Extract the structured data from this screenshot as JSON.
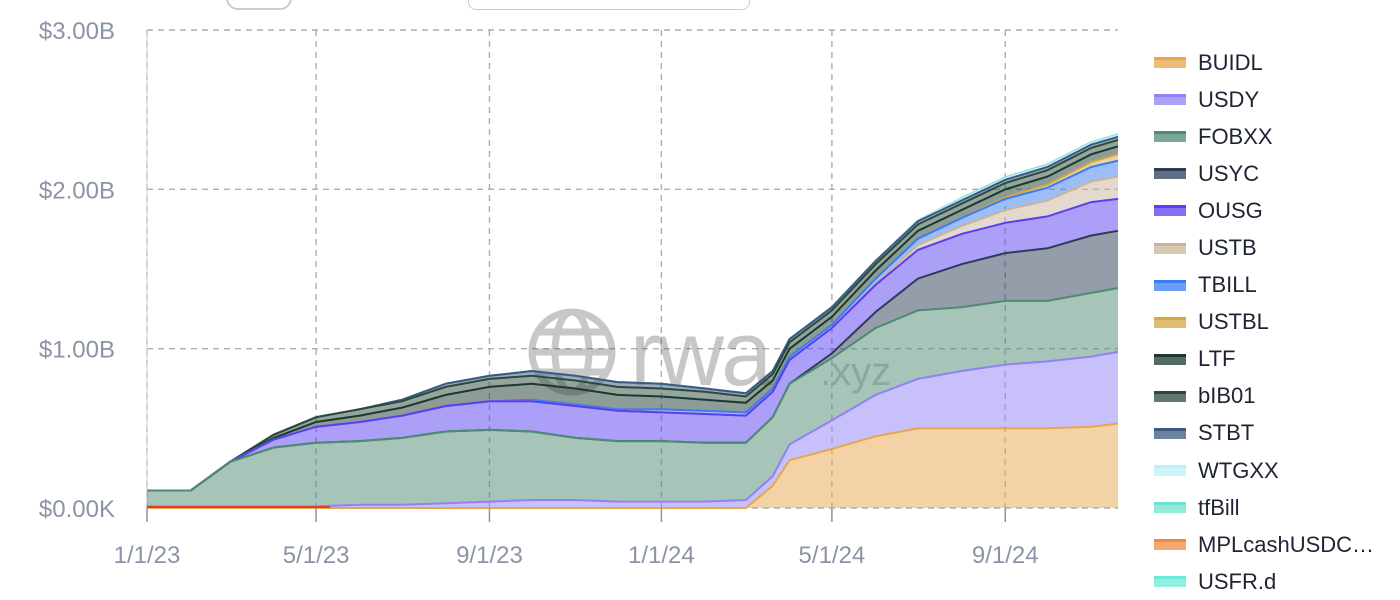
{
  "chart_data": {
    "type": "area",
    "stacked": true,
    "x_axis": {
      "ticks": [
        "1/1/23",
        "5/1/23",
        "9/1/23",
        "1/1/24",
        "5/1/24",
        "9/1/24"
      ],
      "range": [
        "2023-01-01",
        "2024-11-20"
      ]
    },
    "y_axis": {
      "ticks": [
        "$0.00K",
        "$1.00B",
        "$2.00B",
        "$3.00B"
      ],
      "range": [
        0,
        3.0
      ],
      "unit": "billions USD"
    },
    "grid": true,
    "legend_position": "right",
    "watermark": "rwa.xyz",
    "x": [
      "2023-01-01",
      "2023-02-01",
      "2023-03-01",
      "2023-04-01",
      "2023-05-01",
      "2023-06-01",
      "2023-07-01",
      "2023-08-01",
      "2023-09-01",
      "2023-10-01",
      "2023-11-01",
      "2023-12-01",
      "2024-01-01",
      "2024-02-01",
      "2024-03-01",
      "2024-03-20",
      "2024-04-01",
      "2024-05-01",
      "2024-06-01",
      "2024-07-01",
      "2024-08-01",
      "2024-09-01",
      "2024-10-01",
      "2024-11-01",
      "2024-11-20"
    ],
    "series": [
      {
        "name": "BUIDL",
        "color": "#e8a64c",
        "values": [
          0,
          0,
          0,
          0,
          0,
          0,
          0,
          0,
          0,
          0,
          0,
          0,
          0,
          0,
          0,
          0.14,
          0.3,
          0.37,
          0.45,
          0.5,
          0.5,
          0.5,
          0.5,
          0.51,
          0.53
        ]
      },
      {
        "name": "USDY",
        "color": "#8f82f5",
        "values": [
          0.01,
          0.01,
          0.01,
          0.01,
          0.01,
          0.02,
          0.02,
          0.03,
          0.04,
          0.05,
          0.05,
          0.04,
          0.04,
          0.04,
          0.05,
          0.06,
          0.1,
          0.18,
          0.26,
          0.31,
          0.36,
          0.4,
          0.42,
          0.44,
          0.45
        ]
      },
      {
        "name": "FOBXX",
        "color": "#4f8a73",
        "values": [
          0.1,
          0.1,
          0.28,
          0.37,
          0.4,
          0.4,
          0.42,
          0.45,
          0.45,
          0.43,
          0.39,
          0.38,
          0.38,
          0.37,
          0.36,
          0.37,
          0.38,
          0.39,
          0.42,
          0.43,
          0.4,
          0.4,
          0.38,
          0.4,
          0.4
        ]
      },
      {
        "name": "USYC",
        "color": "#2b3c58",
        "values": [
          0,
          0,
          0,
          0,
          0,
          0,
          0,
          0,
          0,
          0,
          0,
          0,
          0,
          0,
          0,
          0,
          0,
          0.03,
          0.1,
          0.2,
          0.27,
          0.3,
          0.33,
          0.36,
          0.36
        ]
      },
      {
        "name": "OUSG",
        "color": "#5a3ff0",
        "values": [
          0,
          0,
          0,
          0.05,
          0.1,
          0.12,
          0.14,
          0.16,
          0.18,
          0.19,
          0.2,
          0.19,
          0.18,
          0.18,
          0.17,
          0.16,
          0.15,
          0.16,
          0.17,
          0.18,
          0.19,
          0.19,
          0.2,
          0.21,
          0.2
        ]
      },
      {
        "name": "USTB",
        "color": "#c9b499",
        "values": [
          0,
          0,
          0,
          0,
          0,
          0,
          0,
          0,
          0,
          0,
          0,
          0,
          0,
          0,
          0,
          0,
          0,
          0,
          0.01,
          0.03,
          0.05,
          0.08,
          0.1,
          0.13,
          0.14
        ]
      },
      {
        "name": "TBILL",
        "color": "#3b7cf2",
        "values": [
          0,
          0,
          0,
          0,
          0,
          0,
          0,
          0,
          0,
          0.01,
          0.01,
          0.01,
          0.02,
          0.02,
          0.02,
          0.02,
          0.02,
          0.02,
          0.03,
          0.04,
          0.05,
          0.07,
          0.08,
          0.09,
          0.1
        ]
      },
      {
        "name": "USTBL",
        "color": "#d4a843",
        "values": [
          0,
          0,
          0,
          0,
          0,
          0,
          0,
          0,
          0,
          0,
          0,
          0,
          0,
          0,
          0,
          0,
          0,
          0,
          0,
          0,
          0,
          0.01,
          0.02,
          0.03,
          0.04
        ]
      },
      {
        "name": "LTF",
        "color": "#1b3a2e",
        "values": [
          0,
          0,
          0,
          0.01,
          0.03,
          0.04,
          0.05,
          0.07,
          0.09,
          0.1,
          0.1,
          0.09,
          0.08,
          0.07,
          0.06,
          0.05,
          0.05,
          0.05,
          0.05,
          0.05,
          0.05,
          0.05,
          0.05,
          0.05,
          0.05
        ]
      },
      {
        "name": "bIB01",
        "color": "#2c4a3c",
        "values": [
          0,
          0,
          0,
          0.02,
          0.03,
          0.04,
          0.04,
          0.05,
          0.05,
          0.05,
          0.05,
          0.05,
          0.05,
          0.05,
          0.04,
          0.04,
          0.04,
          0.04,
          0.04,
          0.04,
          0.04,
          0.04,
          0.04,
          0.04,
          0.04
        ]
      },
      {
        "name": "STBT",
        "color": "#3a5a82",
        "values": [
          0,
          0,
          0,
          0,
          0,
          0,
          0.01,
          0.02,
          0.02,
          0.03,
          0.03,
          0.03,
          0.03,
          0.02,
          0.02,
          0.02,
          0.02,
          0.02,
          0.02,
          0.02,
          0.02,
          0.02,
          0.02,
          0.02,
          0.02
        ]
      },
      {
        "name": "WTGXX",
        "color": "#bdf0fa",
        "values": [
          0,
          0,
          0,
          0,
          0,
          0,
          0,
          0,
          0,
          0,
          0,
          0,
          0,
          0,
          0,
          0,
          0,
          0,
          0,
          0.005,
          0.01,
          0.01,
          0.01,
          0.01,
          0.01
        ]
      },
      {
        "name": "tfBill",
        "color": "#6fe3cf",
        "values": [
          0,
          0,
          0,
          0,
          0,
          0,
          0,
          0,
          0,
          0,
          0,
          0,
          0,
          0,
          0,
          0,
          0,
          0,
          0,
          0,
          0.005,
          0.005,
          0.005,
          0.005,
          0.005
        ]
      },
      {
        "name": "MPLcashUSDC…",
        "color": "#f08a3e",
        "values": [
          0,
          0,
          0,
          0,
          0,
          0,
          0,
          0,
          0,
          0,
          0,
          0,
          0,
          0,
          0,
          0,
          0,
          0,
          0,
          0,
          0,
          0,
          0,
          0,
          0
        ]
      },
      {
        "name": "USFR.d",
        "color": "#6fe8d8",
        "values": [
          0,
          0,
          0,
          0,
          0,
          0,
          0,
          0,
          0,
          0,
          0,
          0,
          0,
          0,
          0,
          0,
          0,
          0,
          0,
          0,
          0,
          0,
          0,
          0,
          0
        ]
      }
    ]
  }
}
